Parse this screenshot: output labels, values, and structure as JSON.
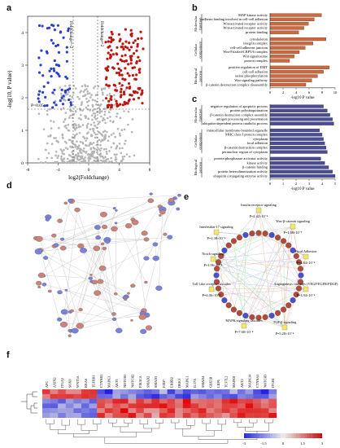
{
  "panels": {
    "a": "a",
    "b": "b",
    "c": "c",
    "d": "d",
    "e": "e",
    "f": "f"
  },
  "volcano": {
    "ylabel": "-log(10, P value)",
    "xlabel": "log2(Foldchange)",
    "p_label": "P=0.05",
    "fc_left": "Foldchange=-2",
    "fc_right": "Foldchange=2",
    "x_ticks": [
      "-8",
      "-4",
      "0",
      "4",
      "8"
    ],
    "y_ticks": [
      "0",
      "1",
      "2",
      "3",
      "4"
    ],
    "colors": {
      "down": "#2b3fd0",
      "up": "#c0150e",
      "ns": "#b5b5b5"
    }
  },
  "go_b": {
    "xlabel": "-log10 P value",
    "x_ticks": [
      "0",
      "2",
      "4",
      "6",
      "8",
      "10"
    ],
    "bar_color": "#d2683a",
    "groups": [
      {
        "name": "Molecular function",
        "terms": [
          {
            "label": "MAP kinase activity",
            "value": 7.9
          },
          {
            "label": "cadherin binding involved in cell-cell adhesion",
            "value": 6.8
          },
          {
            "label": "Wnt-activated receptor activity",
            "value": 5.9
          },
          {
            "label": "Wnt-activated receptor activity",
            "value": 5.2
          },
          {
            "label": "protein binding",
            "value": 4.4
          }
        ]
      },
      {
        "name": "Cellular component",
        "terms": [
          {
            "label": "cytoskeleton",
            "value": 8.6
          },
          {
            "label": "integrin complex",
            "value": 6.6
          },
          {
            "label": "cell-cell adherens junction",
            "value": 5.4
          },
          {
            "label": "Wnt-Frizzled-LRP5/6 complex",
            "value": 4.5
          },
          {
            "label": "Wnt signalosome",
            "value": 3.7
          },
          {
            "label": "protein complex",
            "value": 3.0
          }
        ]
      },
      {
        "name": "Biological process",
        "terms": [
          {
            "label": "positive regulation of EMT",
            "value": 9.1
          },
          {
            "label": "cell-cell adhesion",
            "value": 8.2
          },
          {
            "label": "serine phosphorylation",
            "value": 7.3
          },
          {
            "label": "Wnt signaling pathway",
            "value": 6.4
          },
          {
            "label": "β-catenin destruction complex disassembly",
            "value": 5.5
          }
        ]
      }
    ]
  },
  "go_c": {
    "xlabel": "-log10 P value",
    "x_ticks": [
      "0",
      "1",
      "2",
      "3",
      "4",
      "5"
    ],
    "bar_color": "#4a4c9a",
    "groups": [
      {
        "name": "Molecular function",
        "terms": [
          {
            "label": "negative regulation of apoptotic process",
            "value": 4.1
          },
          {
            "label": "protein polyubiquitination",
            "value": 4.4
          },
          {
            "label": "β-catenin destruction complex assembly",
            "value": 4.6
          },
          {
            "label": "antigen processing and presentation",
            "value": 4.8
          },
          {
            "label": "ubiquitin-dependent protein catabolic process",
            "value": 4.9
          }
        ]
      },
      {
        "name": "Cellular component",
        "terms": [
          {
            "label": "intracellular membrane-bounded organelle",
            "value": 3.8
          },
          {
            "label": "MHC class I protein complex",
            "value": 4.0
          },
          {
            "label": "cytoplasm",
            "value": 4.1
          },
          {
            "label": "focal adhesion",
            "value": 4.2
          },
          {
            "label": "β-catenin destruction complex",
            "value": 4.3
          },
          {
            "label": "perinuclear region of cytoplasm",
            "value": 4.4
          }
        ]
      },
      {
        "name": "Biological process",
        "terms": [
          {
            "label": "protein phosphatase activator activity",
            "value": 3.9
          },
          {
            "label": "kinase activity",
            "value": 4.2
          },
          {
            "label": "β-catenin binding",
            "value": 4.5
          },
          {
            "label": "protein heterodimerization activity",
            "value": 4.8
          },
          {
            "label": "ubiquitin conjugating enzyme activity",
            "value": 5.0
          }
        ]
      }
    ]
  },
  "pathways": {
    "items": [
      {
        "name": "Insulin receptor signaling",
        "p": "P=2.42×10⁻⁴"
      },
      {
        "name": "Wnt-β-catenin signaling",
        "p": "P=1.08×10⁻⁵"
      },
      {
        "name": "Interleukin-17 signaling",
        "p": "P=2.38×10⁻⁴"
      },
      {
        "name": "Notch signaling",
        "p": "P=1.96×10⁻⁴"
      },
      {
        "name": "Focal Adhesion",
        "p": "P=4.64×10⁻⁴"
      },
      {
        "name": "Toll Like receptor cascades",
        "p": "P=4.06×10⁻⁴"
      },
      {
        "name": "Angiogenesis cascades (VEGF/EGFR/PDGF)",
        "p": "P=3.94×10⁻⁴"
      },
      {
        "name": "MAPK signaling cascades",
        "p": "P=7.68×10⁻⁴"
      },
      {
        "name": "TGF-β signaling",
        "p": "P=5.28×10⁻⁴"
      }
    ],
    "colors": {
      "pathway": "#f0e866",
      "gene": "#b24a3a",
      "gene_alt": "#4a4fd0"
    }
  },
  "heatmap": {
    "genes": [
      "APC",
      "AXIN2",
      "ITGA5",
      "SOX9",
      "WNT5A",
      "KRAS",
      "TGFBR1",
      "CTNNB1",
      "MAPK3",
      "AKT1",
      "NOTCH1",
      "NOTCH2",
      "PIK3CA",
      "SMAD2",
      "SMAD3",
      "FZD7",
      "ERBB2",
      "DKK1",
      "MAPK1",
      "IL17A",
      "SMAD4",
      "GSK3B",
      "LRP6",
      "TCF7L2",
      "MAPK8",
      "AKT2",
      "MAPK14",
      "CTNNA1",
      "NOTCH3",
      "ITGB1"
    ],
    "scale_labels": [
      "-3",
      "-1.5",
      "0",
      "1.5",
      "3"
    ]
  }
}
